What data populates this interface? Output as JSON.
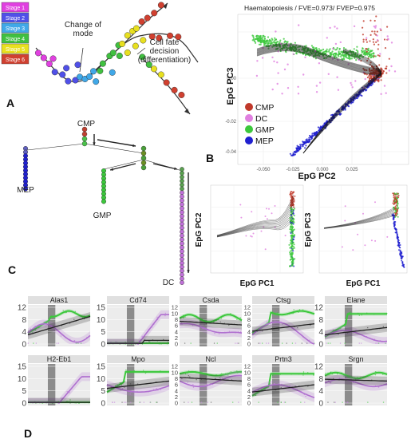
{
  "panels": {
    "a": {
      "letter": "A",
      "stage_legend": [
        {
          "label": "Stage 1",
          "color": "#e040e0"
        },
        {
          "label": "Stage 2",
          "color": "#5050e8"
        },
        {
          "label": "Stage 3",
          "color": "#40a8e8"
        },
        {
          "label": "Stage 4",
          "color": "#40c040"
        },
        {
          "label": "Stage 5",
          "color": "#e8e020"
        },
        {
          "label": "Stage 6",
          "color": "#d04030"
        }
      ],
      "annotation_mode": "Change of\nmode",
      "annotation_decision": "Cell fate\ndecision\n(differentiation)"
    },
    "b": {
      "letter": "B",
      "title": "Haematopoiesis / FVE=0.973/ FVEP=0.975",
      "xlabel": "EpG PC2",
      "ylabel": "EpG PC3",
      "xticks": [
        "-0.050",
        "-0.025",
        "0.000",
        "0.025"
      ],
      "yticks": [
        "0.00",
        "-0.02",
        "-0.04"
      ],
      "legend": [
        {
          "label": "CMP",
          "color": "#c0392b"
        },
        {
          "label": "DC",
          "color": "#e080e0"
        },
        {
          "label": "GMP",
          "color": "#3cc83c"
        },
        {
          "label": "MEP",
          "color": "#2020d0"
        }
      ]
    },
    "c": {
      "letter": "C",
      "tree_labels": {
        "cmp": "CMP",
        "mep": "MEP",
        "gmp": "GMP",
        "dc": "DC"
      },
      "small_plots": [
        {
          "xlabel": "EpG PC1",
          "ylabel": "EpG PC2"
        },
        {
          "xlabel": "EpG PC1",
          "ylabel": "EpG PC3"
        }
      ]
    },
    "d": {
      "letter": "D",
      "genes": [
        {
          "name": "Alas1",
          "yticks": [
            "12",
            "8",
            "4",
            "0"
          ],
          "top": 12,
          "profile": "alas1"
        },
        {
          "name": "Cd74",
          "yticks": [
            "15",
            "10",
            "5",
            "0"
          ],
          "top": 15,
          "profile": "cd74"
        },
        {
          "name": "Csda",
          "yticks": [
            "12",
            "10",
            "8",
            "6",
            "4",
            "2",
            "0"
          ],
          "top": 12,
          "profile": "csda"
        },
        {
          "name": "Ctsg",
          "yticks": [
            "12",
            "10",
            "8",
            "6",
            "4",
            "2",
            "0"
          ],
          "top": 12,
          "profile": "ctsg"
        },
        {
          "name": "Elane",
          "yticks": [
            "12",
            "8",
            "4",
            "0"
          ],
          "top": 12,
          "profile": "elane"
        },
        {
          "name": "H2-Eb1",
          "yticks": [
            "15",
            "10",
            "5",
            "0"
          ],
          "top": 15,
          "profile": "h2eb1"
        },
        {
          "name": "Mpo",
          "yticks": [
            "15",
            "10",
            "5",
            "0"
          ],
          "top": 15,
          "profile": "mpo"
        },
        {
          "name": "Ncl",
          "yticks": [
            "12",
            "10",
            "8",
            "6",
            "4",
            "2",
            "0"
          ],
          "top": 12,
          "profile": "ncl"
        },
        {
          "name": "Prtn3",
          "yticks": [
            "12",
            "10",
            "8",
            "6",
            "4",
            "2",
            "0"
          ],
          "top": 12,
          "profile": "prtn3"
        },
        {
          "name": "Srgn",
          "yticks": [
            "12",
            "8",
            "4",
            "0"
          ],
          "top": 12,
          "profile": "srgn"
        }
      ]
    }
  }
}
